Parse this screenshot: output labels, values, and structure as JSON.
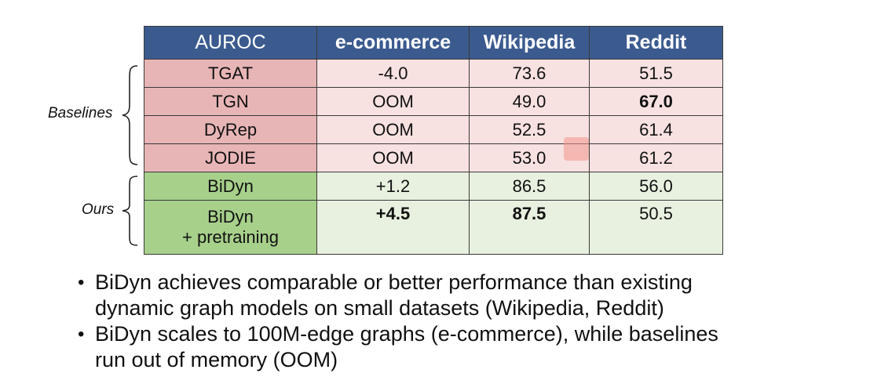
{
  "table": {
    "header": [
      "AUROC",
      "e-commerce",
      "Wikipedia",
      "Reddit"
    ],
    "groups": {
      "baselines": "Baselines",
      "ours": "Ours"
    },
    "rows": [
      {
        "model": "TGAT",
        "ecommerce": "-4.0",
        "wikipedia": "73.6",
        "reddit": "51.5"
      },
      {
        "model": "TGN",
        "ecommerce": "OOM",
        "wikipedia": "49.0",
        "reddit": "67.0"
      },
      {
        "model": "DyRep",
        "ecommerce": "OOM",
        "wikipedia": "52.5",
        "reddit": "61.4"
      },
      {
        "model": "JODIE",
        "ecommerce": "OOM",
        "wikipedia": "53.0",
        "reddit": "61.2"
      },
      {
        "model": "BiDyn",
        "ecommerce": "+1.2",
        "wikipedia": "86.5",
        "reddit": "56.0"
      },
      {
        "model": "BiDyn",
        "model_line2": "+ pretraining",
        "ecommerce": "+4.5",
        "wikipedia": "87.5",
        "reddit": "50.5"
      }
    ]
  },
  "bullets": [
    {
      "line1": "BiDyn achieves comparable or better performance than existing",
      "line2": "dynamic graph models on small datasets (Wikipedia, Reddit)"
    },
    {
      "line1": "BiDyn scales to 100M-edge graphs (e-commerce), while baselines",
      "line2": "run out of memory (OOM)"
    }
  ],
  "colors": {
    "header_bg": "#3b5b8f",
    "baseline_model_bg": "#e8b5b6",
    "baseline_value_bg": "#f8e1e1",
    "ours_model_bg": "#a7d08b",
    "ours_value_bg": "#e8f1df"
  },
  "icons": {
    "overlay": "search-icon"
  }
}
